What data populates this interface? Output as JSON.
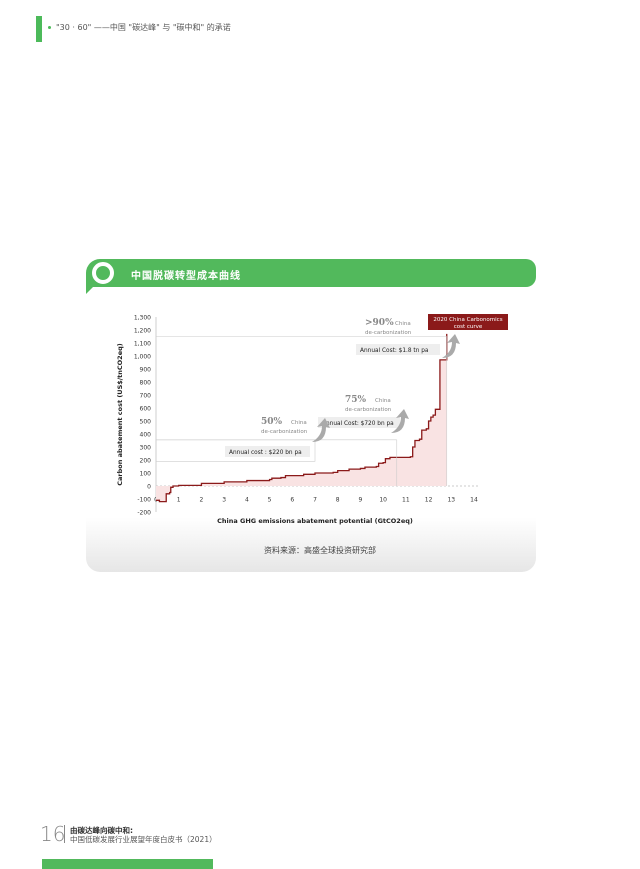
{
  "header": {
    "section": "\"30 · 60\" ——中国 \"碳达峰\" 与 \"碳中和\" 的承诺"
  },
  "figure": {
    "title": "中国脱碳转型成本曲线",
    "source": "资料来源：高盛全球投资研究部"
  },
  "chart_data": {
    "type": "line",
    "xlabel": "China GHG emissions abatement potential (GtCO2eq)",
    "ylabel": "Carbon abatement cost (US$/tnCO2eq)",
    "xlim": [
      0,
      14
    ],
    "ylim": [
      -200,
      1300
    ],
    "xticks": [
      "0",
      "1",
      "2",
      "3",
      "4",
      "5",
      "6",
      "7",
      "8",
      "9",
      "10",
      "11",
      "12",
      "13",
      "14"
    ],
    "yticks": [
      "-200",
      "-100",
      "0",
      "100",
      "200",
      "300",
      "400",
      "500",
      "600",
      "700",
      "800",
      "900",
      "1,000",
      "1,100",
      "1,200",
      "1,300"
    ],
    "series": [
      {
        "color": "#8b1a1a",
        "step": true,
        "x": [
          0,
          0.15,
          0.4,
          0.45,
          0.6,
          0.65,
          0.75,
          1,
          2,
          3,
          4,
          5,
          5.1,
          5.5,
          5.7,
          6.5,
          7,
          7.8,
          8,
          8.5,
          9,
          9.2,
          9.7,
          9.8,
          10,
          10.1,
          10.3,
          11.2,
          11.3,
          11.4,
          11.6,
          11.7,
          11.9,
          12,
          12.1,
          12.2,
          12.3,
          12.5,
          12.8
        ],
        "y": [
          -110,
          -120,
          -120,
          -60,
          -50,
          -10,
          0,
          5,
          20,
          32,
          42,
          50,
          60,
          65,
          80,
          90,
          100,
          105,
          118,
          130,
          135,
          145,
          150,
          175,
          180,
          210,
          220,
          225,
          300,
          350,
          360,
          430,
          440,
          500,
          530,
          545,
          590,
          970,
          1170
        ]
      }
    ],
    "annotations": [
      {
        "pct": "50%",
        "label1": "China",
        "label2": "de-carbonization",
        "cost": "Annual cost : $220 bn pa",
        "x": 7,
        "y_low": 190,
        "y_high": 355
      },
      {
        "pct": "75%",
        "label1": "China",
        "label2": "de-carbonization",
        "cost": "Annual Cost: $720 bn pa",
        "x": 10.6
      },
      {
        "pct": ">90%",
        "label1": "China",
        "label2": "de-carbonization",
        "cost": "Annual Cost: $1.8 tn pa",
        "x": 12.8,
        "y_high": 1150
      }
    ],
    "legend_box": "2020 China Carbonomics cost curve",
    "legend_color": "#8b1a1a",
    "fill_color": "#f9e3e3",
    "grid": false
  },
  "footer": {
    "page": "16",
    "title": "由碳达峰向碳中和:",
    "subtitle": "中国低碳发展行业展望年度白皮书（2021）"
  },
  "colors": {
    "brand": "#52b95c"
  }
}
